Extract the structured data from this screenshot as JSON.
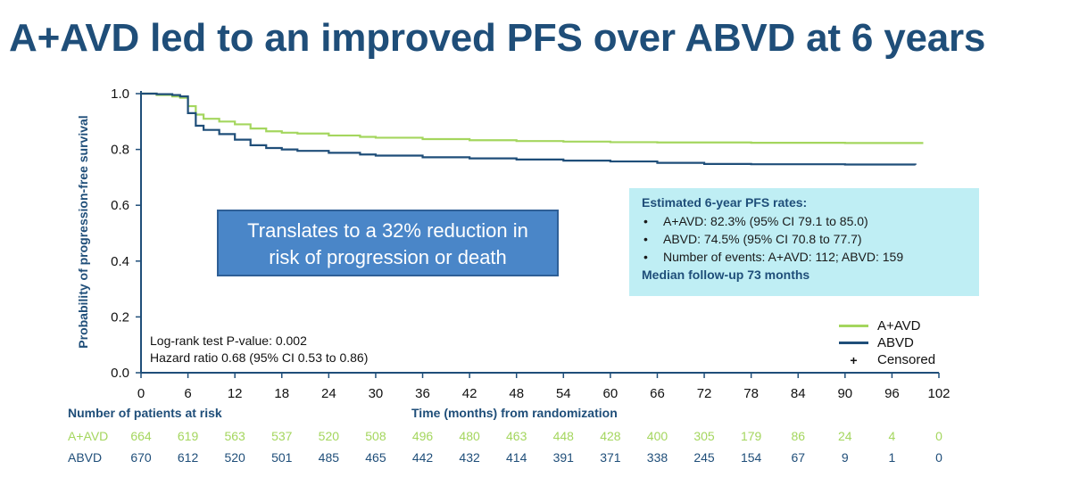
{
  "title": "A+AVD led to an improved PFS over ABVD at 6 years",
  "callout": {
    "line1": "Translates to a 32% reduction in",
    "line2": "risk of progression or death"
  },
  "pfs_box": {
    "heading": "Estimated 6-year PFS rates:",
    "items": [
      "A+AVD: 82.3% (95% CI 79.1 to 85.0)",
      "ABVD: 74.5% (95% CI 70.8 to 77.7)",
      "Number of events: A+AVD: 112; ABVD: 159"
    ],
    "footer": "Median follow-up 73 months"
  },
  "stats": {
    "logrank": "Log-rank test P-value: 0.002",
    "hazard": "Hazard ratio 0.68 (95% CI 0.53 to 0.86)"
  },
  "legend": {
    "aavd": "A+AVD",
    "abvd": "ABVD",
    "censored": "Censored"
  },
  "risk_table": {
    "title": "Number of patients at risk",
    "rows": [
      {
        "label": "A+AVD",
        "values": [
          "664",
          "619",
          "563",
          "537",
          "520",
          "508",
          "496",
          "480",
          "463",
          "448",
          "428",
          "400",
          "305",
          "179",
          "86",
          "24",
          "4",
          "0"
        ]
      },
      {
        "label": "ABVD",
        "values": [
          "670",
          "612",
          "520",
          "501",
          "485",
          "465",
          "442",
          "432",
          "414",
          "391",
          "371",
          "338",
          "245",
          "154",
          "67",
          "9",
          "1",
          "0"
        ]
      }
    ]
  },
  "colors": {
    "aavd": "#a4d65e",
    "abvd": "#1f4e79",
    "axis": "#1f4e79",
    "callout_bg": "#4a86c8",
    "pfs_box_bg": "#bfeef4"
  },
  "chart_data": {
    "type": "line",
    "xlabel": "Time (months) from randomization",
    "ylabel": "Probability of progression-free survival",
    "xlim": [
      0,
      102
    ],
    "ylim": [
      0,
      1.0
    ],
    "xticks": [
      0,
      6,
      12,
      18,
      24,
      30,
      36,
      42,
      48,
      54,
      60,
      66,
      72,
      78,
      84,
      90,
      96,
      102
    ],
    "yticks": [
      0.0,
      0.2,
      0.4,
      0.6,
      0.8,
      1.0
    ],
    "ytick_labels": [
      "0.0",
      "0.2",
      "0.4",
      "0.6",
      "0.8",
      "1.0"
    ],
    "legend_position": "bottom-right",
    "series": [
      {
        "name": "A+AVD",
        "color": "#a4d65e",
        "x": [
          0,
          2,
          4,
          5,
          6,
          7,
          8,
          10,
          12,
          14,
          16,
          18,
          20,
          24,
          28,
          30,
          36,
          42,
          48,
          54,
          60,
          66,
          72,
          78,
          84,
          90,
          96,
          100
        ],
        "y": [
          1.0,
          0.995,
          0.99,
          0.985,
          0.955,
          0.925,
          0.91,
          0.9,
          0.89,
          0.875,
          0.865,
          0.86,
          0.857,
          0.85,
          0.845,
          0.842,
          0.837,
          0.833,
          0.83,
          0.828,
          0.826,
          0.825,
          0.825,
          0.824,
          0.824,
          0.823,
          0.823,
          0.823
        ]
      },
      {
        "name": "ABVD",
        "color": "#1f4e79",
        "x": [
          0,
          2,
          4,
          5,
          6,
          7,
          8,
          10,
          12,
          14,
          16,
          18,
          20,
          24,
          28,
          30,
          36,
          42,
          48,
          54,
          60,
          66,
          72,
          78,
          84,
          90,
          96,
          99
        ],
        "y": [
          1.0,
          0.998,
          0.995,
          0.99,
          0.93,
          0.885,
          0.87,
          0.855,
          0.835,
          0.815,
          0.805,
          0.8,
          0.795,
          0.788,
          0.782,
          0.778,
          0.772,
          0.768,
          0.764,
          0.76,
          0.757,
          0.752,
          0.748,
          0.747,
          0.747,
          0.746,
          0.746,
          0.745
        ]
      }
    ]
  }
}
